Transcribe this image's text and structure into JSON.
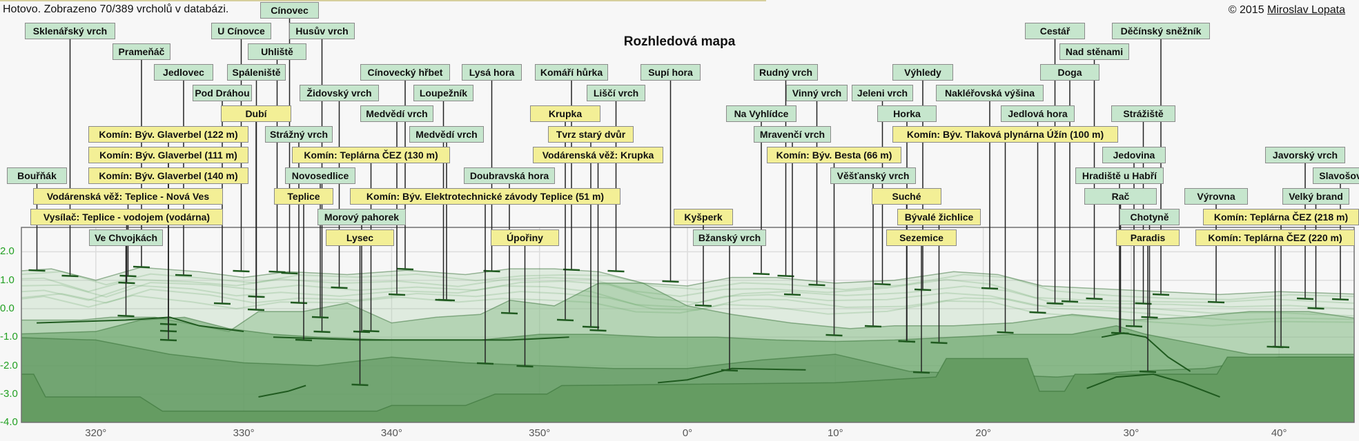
{
  "status_text": "Hotovo. Zobrazeno 70/389 vrcholů v databázi.",
  "title": "Rozhledová mapa",
  "copyright": {
    "prefix": "© 2015 ",
    "author_link": "Miroslav Lopata"
  },
  "colors": {
    "peak": "#c6e6cd",
    "landmark": "#f3ef96",
    "terrain": "#5e9a5d",
    "axis_labels": "#22a022"
  },
  "y_axis_ticks": [
    "2.0",
    "1.0",
    "0.0",
    "-1.0",
    "-2.0",
    "-3.0",
    "-4.0"
  ],
  "x_axis_ticks": [
    "320°",
    "330°",
    "340°",
    "350°",
    "0°",
    "10°",
    "20°",
    "30°",
    "40°"
  ],
  "labels": [
    {
      "text": "Cínovec",
      "type": "peak"
    },
    {
      "text": "Sklenářský vrch",
      "type": "peak"
    },
    {
      "text": "U Cínovce",
      "type": "peak"
    },
    {
      "text": "Husův vrch",
      "type": "peak"
    },
    {
      "text": "Cestář",
      "type": "peak"
    },
    {
      "text": "Děčínský sněžník",
      "type": "peak"
    },
    {
      "text": "Prameňáč",
      "type": "peak"
    },
    {
      "text": "Uhliště",
      "type": "peak"
    },
    {
      "text": "Nad stěnami",
      "type": "peak"
    },
    {
      "text": "Jedlovec",
      "type": "peak"
    },
    {
      "text": "Spáleniště",
      "type": "peak"
    },
    {
      "text": "Cínovecký hřbet",
      "type": "peak"
    },
    {
      "text": "Lysá hora",
      "type": "peak"
    },
    {
      "text": "Komáří hůrka",
      "type": "peak"
    },
    {
      "text": "Supí hora",
      "type": "peak"
    },
    {
      "text": "Rudný vrch",
      "type": "peak"
    },
    {
      "text": "Výhledy",
      "type": "peak"
    },
    {
      "text": "Doga",
      "type": "peak"
    },
    {
      "text": "Pod Dráhou",
      "type": "peak"
    },
    {
      "text": "Židovský vrch",
      "type": "peak"
    },
    {
      "text": "Loupežník",
      "type": "peak"
    },
    {
      "text": "Liščí vrch",
      "type": "peak"
    },
    {
      "text": "Vinný vrch",
      "type": "peak"
    },
    {
      "text": "Jeleni vrch",
      "type": "peak"
    },
    {
      "text": "Nakléřovská výšina",
      "type": "peak"
    },
    {
      "text": "Dubí",
      "type": "landmark"
    },
    {
      "text": "Medvědí vrch",
      "type": "peak"
    },
    {
      "text": "Krupka",
      "type": "landmark"
    },
    {
      "text": "Na Vyhlídce",
      "type": "peak"
    },
    {
      "text": "Horka",
      "type": "peak"
    },
    {
      "text": "Jedlová hora",
      "type": "peak"
    },
    {
      "text": "Strážiště",
      "type": "peak"
    },
    {
      "text": "Komín: Býv. Glaverbel (122 m)",
      "type": "landmark"
    },
    {
      "text": "Strážný vrch",
      "type": "peak"
    },
    {
      "text": "Medvědí vrch",
      "type": "peak"
    },
    {
      "text": "Tvrz starý dvůr",
      "type": "landmark"
    },
    {
      "text": "Mravenčí vrch",
      "type": "peak"
    },
    {
      "text": "Komín: Býv. Tlaková plynárna Úžín (100 m)",
      "type": "landmark"
    },
    {
      "text": "Komín: Býv. Glaverbel (111 m)",
      "type": "landmark"
    },
    {
      "text": "Komín: Teplárna ČEZ (130 m)",
      "type": "landmark"
    },
    {
      "text": "Vodárenská věž: Krupka",
      "type": "landmark"
    },
    {
      "text": "Komín: Býv. Besta (66 m)",
      "type": "landmark"
    },
    {
      "text": "Jedovina",
      "type": "peak"
    },
    {
      "text": "Javorský vrch",
      "type": "peak"
    },
    {
      "text": "Bouřňák",
      "type": "peak"
    },
    {
      "text": "Komín: Býv. Glaverbel (140 m)",
      "type": "landmark"
    },
    {
      "text": "Novosedlice",
      "type": "peak"
    },
    {
      "text": "Doubravská hora",
      "type": "peak"
    },
    {
      "text": "Věšťanský vrch",
      "type": "peak"
    },
    {
      "text": "Hradiště u Habří",
      "type": "peak"
    },
    {
      "text": "Slavošov",
      "type": "peak"
    },
    {
      "text": "Vodárenská věž: Teplice - Nová Ves",
      "type": "landmark"
    },
    {
      "text": "Teplice",
      "type": "landmark"
    },
    {
      "text": "Komín: Býv. Elektrotechnické závody Teplice (51 m)",
      "type": "landmark"
    },
    {
      "text": "Suché",
      "type": "landmark"
    },
    {
      "text": "Rač",
      "type": "peak"
    },
    {
      "text": "Výrovna",
      "type": "peak"
    },
    {
      "text": "Velký brand",
      "type": "peak"
    },
    {
      "text": "Vysílač: Teplice - vodojem (vodárna)",
      "type": "landmark"
    },
    {
      "text": "Morový pahorek",
      "type": "peak"
    },
    {
      "text": "Kyšperk",
      "type": "landmark"
    },
    {
      "text": "Bývalé žichlice",
      "type": "landmark"
    },
    {
      "text": "Chotyně",
      "type": "peak"
    },
    {
      "text": "Komín: Teplárna ČEZ (218 m)",
      "type": "landmark"
    },
    {
      "text": "Ve Chvojkách",
      "type": "peak"
    },
    {
      "text": "Lysec",
      "type": "landmark"
    },
    {
      "text": "Úpořiny",
      "type": "landmark"
    },
    {
      "text": "Bžanský vrch",
      "type": "peak"
    },
    {
      "text": "Sezemice",
      "type": "landmark"
    },
    {
      "text": "Paradis",
      "type": "landmark"
    },
    {
      "text": "Komín: Teplárna ČEZ (220 m)",
      "type": "landmark"
    }
  ]
}
